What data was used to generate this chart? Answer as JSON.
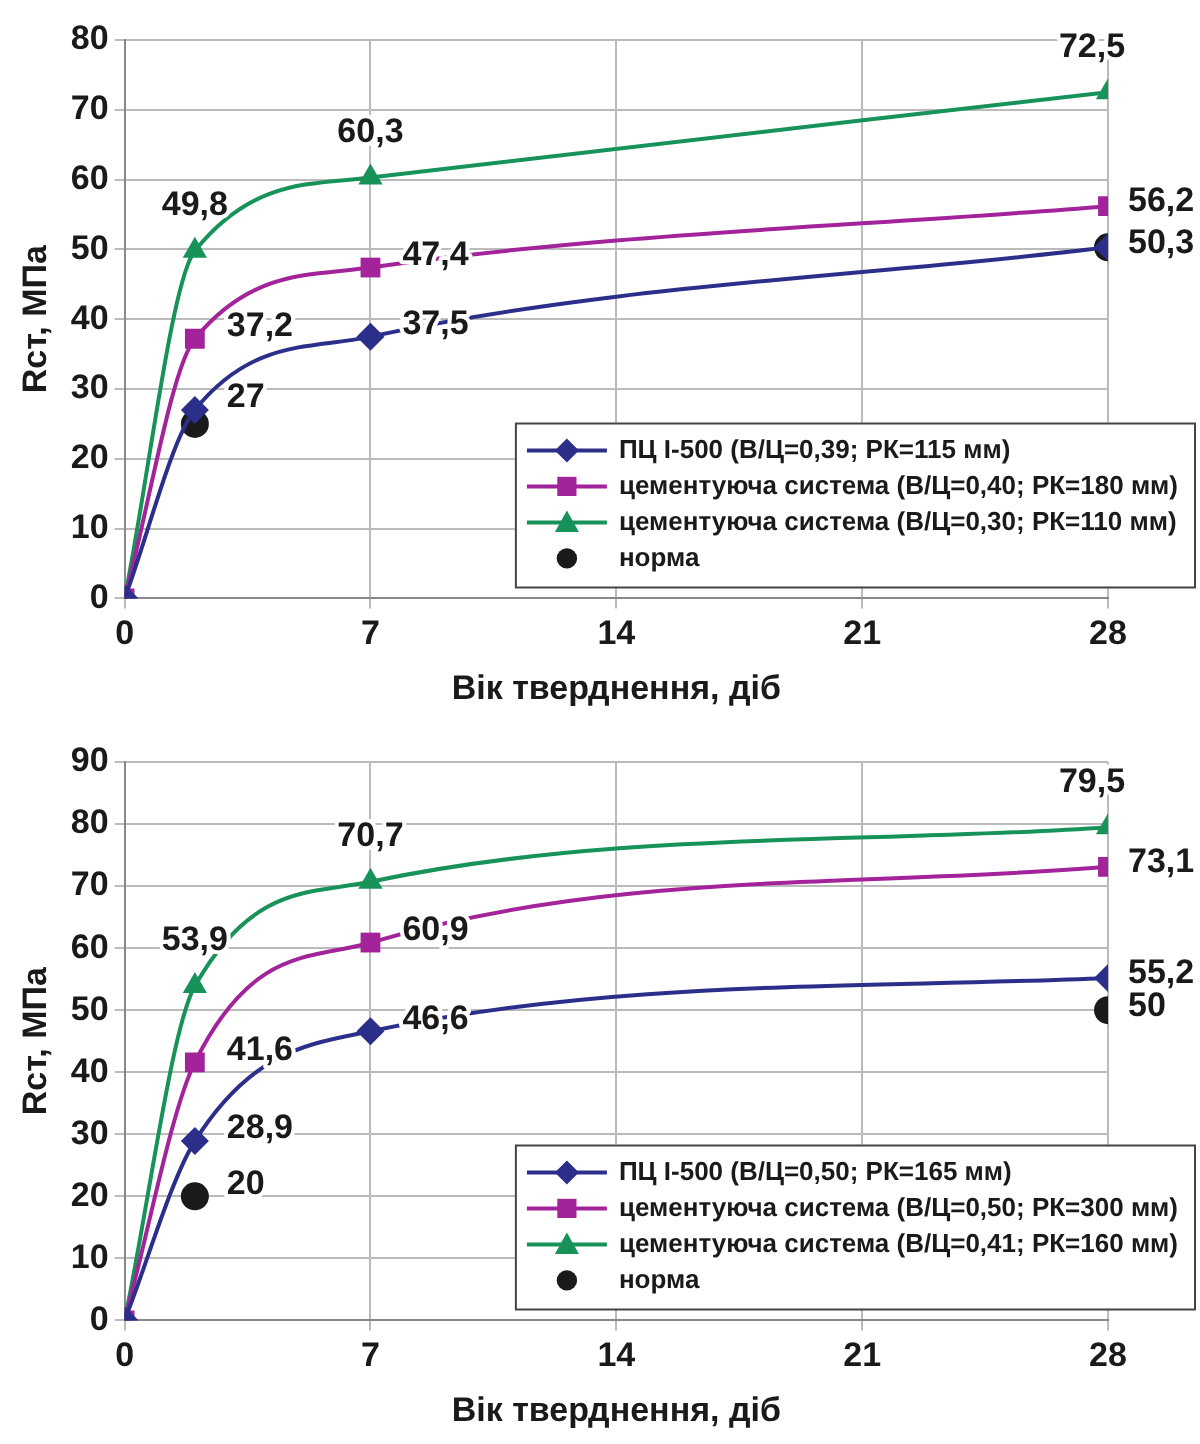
{
  "chart_data": [
    {
      "type": "line",
      "xlabel": "Вік тверднення, діб",
      "ylabel": "Rст, МПа",
      "x": [
        0,
        2,
        7,
        28
      ],
      "xlim": [
        0,
        28
      ],
      "xticks": [
        0,
        7,
        14,
        21,
        28
      ],
      "ylim": [
        0,
        80
      ],
      "yticks": [
        0,
        10,
        20,
        30,
        40,
        50,
        60,
        70,
        80
      ],
      "grid": true,
      "legend": "bottom right",
      "series": [
        {
          "name": "ПЦ І-500 (В/Ц=0,39; РК=115 мм)",
          "color": "#2b2f8a",
          "marker": "diamond",
          "values": [
            0,
            27,
            37.5,
            50.3
          ],
          "value_labels": [
            null,
            "27",
            "37,5",
            "50,3"
          ]
        },
        {
          "name": "цементуюча система (В/Ц=0,40; РК=180 мм)",
          "color": "#a3239a",
          "marker": "square",
          "values": [
            0,
            37.2,
            47.4,
            56.2
          ],
          "value_labels": [
            null,
            "37,2",
            "47,4",
            "56,2"
          ]
        },
        {
          "name": "цементуюча система (В/Ц=0,30; РК=110 мм)",
          "color": "#17935a",
          "marker": "triangle",
          "values": [
            0,
            49.8,
            60.3,
            72.5
          ],
          "value_labels": [
            null,
            "49,8",
            "60,3",
            "72,5"
          ]
        },
        {
          "name": "норма",
          "type": "scatter",
          "color": "#1a1a1a",
          "marker": "circle",
          "values": [
            null,
            25,
            null,
            50.3
          ]
        }
      ]
    },
    {
      "type": "line",
      "xlabel": "Вік тверднення, діб",
      "ylabel": "Rст, МПа",
      "x": [
        0,
        2,
        7,
        28
      ],
      "xlim": [
        0,
        28
      ],
      "xticks": [
        0,
        7,
        14,
        21,
        28
      ],
      "ylim": [
        0,
        90
      ],
      "yticks": [
        0,
        10,
        20,
        30,
        40,
        50,
        60,
        70,
        80,
        90
      ],
      "grid": true,
      "legend": "bottom right",
      "series": [
        {
          "name": "ПЦ І-500 (В/Ц=0,50; РК=165 мм)",
          "color": "#2b2f8a",
          "marker": "diamond",
          "values": [
            0,
            28.9,
            46.6,
            55.2
          ],
          "value_labels": [
            null,
            "28,9",
            "46,6",
            "55,2"
          ]
        },
        {
          "name": "цементуюча система (В/Ц=0,50; РК=300 мм)",
          "color": "#a3239a",
          "marker": "square",
          "values": [
            0,
            41.6,
            60.9,
            73.1
          ],
          "value_labels": [
            null,
            "41,6",
            "60,9",
            "73,1"
          ]
        },
        {
          "name": "цементуюча система (В/Ц=0,41; РК=160 мм)",
          "color": "#17935a",
          "marker": "triangle",
          "values": [
            0,
            53.9,
            70.7,
            79.5
          ],
          "value_labels": [
            null,
            "53,9",
            "70,7",
            "79,5"
          ]
        },
        {
          "name": "норма",
          "type": "scatter",
          "color": "#1a1a1a",
          "marker": "circle",
          "values": [
            null,
            20,
            null,
            50
          ],
          "value_labels": [
            null,
            "20",
            null,
            "50"
          ]
        }
      ]
    }
  ]
}
